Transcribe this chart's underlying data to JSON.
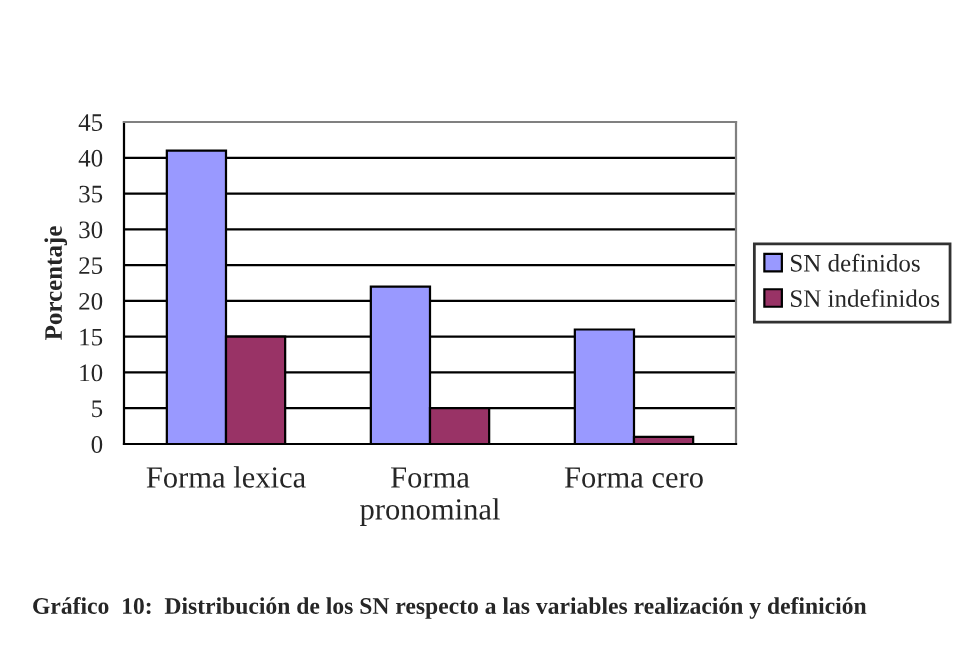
{
  "chart_data": {
    "type": "bar",
    "categories": [
      "Forma lexica",
      "Forma pronominal",
      "Forma cero"
    ],
    "series": [
      {
        "name": "SN definidos",
        "color": "#9999ff",
        "values": [
          41,
          22,
          16
        ]
      },
      {
        "name": "SN indefinidos",
        "color": "#993366",
        "values": [
          15,
          5,
          1
        ]
      }
    ],
    "ylabel": "Porcentaje",
    "ylim": [
      0,
      45
    ],
    "yticks": [
      0,
      5,
      10,
      15,
      20,
      25,
      30,
      35,
      40,
      45
    ],
    "grid": "y",
    "legend": "right",
    "annotations": [
      "Gráfico  10:  Distribución de los SN respecto a las variables realización y definición"
    ]
  }
}
